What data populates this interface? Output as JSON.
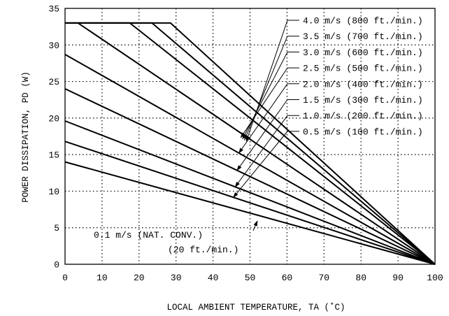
{
  "chart_data": {
    "type": "line",
    "xlabel": "LOCAL AMBIENT TEMPERATURE, TA (˚C)",
    "ylabel": "POWER DISSIPATION, PD (W)",
    "xlim": [
      0,
      100
    ],
    "ylim": [
      0,
      35
    ],
    "x_ticks": [
      0,
      10,
      20,
      30,
      40,
      50,
      60,
      70,
      80,
      90,
      100
    ],
    "y_ticks": [
      0,
      5,
      10,
      15,
      20,
      25,
      30,
      35
    ],
    "grid": true,
    "series": [
      {
        "name": "0.1 m/s (NAT. CONV.)",
        "name_line2": "(20 ft./min.)",
        "x": [
          0,
          100
        ],
        "y": [
          14.0,
          0
        ]
      },
      {
        "name": "0.5 m/s (100 ft./min.)",
        "x": [
          0,
          100
        ],
        "y": [
          16.8,
          0
        ]
      },
      {
        "name": "1.0 m/s (200 ft./min.)",
        "x": [
          0,
          100
        ],
        "y": [
          19.6,
          0
        ]
      },
      {
        "name": "1.5 m/s (300 ft./min.)",
        "x": [
          0,
          100
        ],
        "y": [
          24.0,
          0
        ]
      },
      {
        "name": "2.0 m/s (400 ft./min.)",
        "x": [
          0,
          100
        ],
        "y": [
          28.7,
          0
        ]
      },
      {
        "name": "2.5 m/s (500 ft./min.)",
        "x": [
          3.5,
          100
        ],
        "y": [
          33.0,
          0
        ]
      },
      {
        "name": "3.0 m/s (600 ft./min.)",
        "x": [
          0,
          17.5,
          100
        ],
        "y": [
          33.0,
          33.0,
          0
        ]
      },
      {
        "name": "3.5 m/s (700 ft./min.)",
        "x": [
          0,
          23.5,
          100
        ],
        "y": [
          33.0,
          33.0,
          0
        ]
      },
      {
        "name": "4.0 m/s (800 ft./min.)",
        "x": [
          0,
          28.5,
          100
        ],
        "y": [
          33.0,
          33.0,
          0
        ]
      }
    ]
  }
}
